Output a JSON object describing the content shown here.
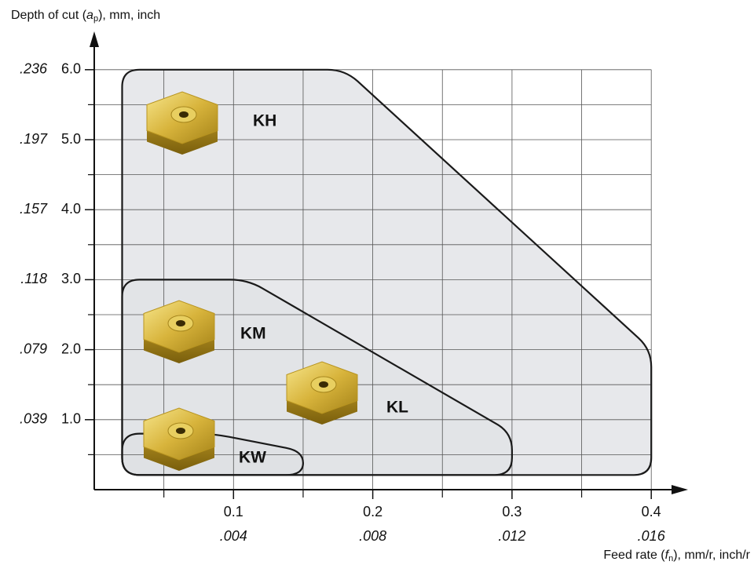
{
  "chart_data": {
    "type": "region",
    "ylabel": {
      "prefix": "Depth of cut (",
      "symbol": "a",
      "subscript": "p",
      "suffix": "), mm, inch"
    },
    "xlabel": {
      "prefix": "Feed rate (",
      "symbol": "f",
      "subscript": "n",
      "suffix": "), mm/r, inch/r"
    },
    "xlim": [
      0,
      0.42
    ],
    "ylim": [
      0,
      6.5
    ],
    "xticks": [
      0.1,
      0.2,
      0.3,
      0.4
    ],
    "x_inch_labels": [
      ".004",
      ".008",
      ".012",
      ".016"
    ],
    "x_minor_ticks": [
      0.05,
      0.15,
      0.25,
      0.35
    ],
    "yticks": [
      {
        "value": 1,
        "label": "1.0"
      },
      {
        "value": 2,
        "label": "2.0"
      },
      {
        "value": 3,
        "label": "3.0"
      },
      {
        "value": 4,
        "label": "4.0"
      },
      {
        "value": 5,
        "label": "5.0"
      },
      {
        "value": 6,
        "label": "6.0"
      }
    ],
    "y_inch_labels": [
      ".039",
      ".079",
      ".118",
      ".157",
      ".197",
      ".236"
    ],
    "y_minor_ticks": [
      0.5,
      1.5,
      2.5,
      3.5,
      4.5,
      5.5
    ],
    "grid": true,
    "regions": [
      {
        "x": [
          0.02,
          0.02,
          0.18,
          0.4,
          0.4
        ],
        "y": [
          0.21,
          6.0,
          6.0,
          2.0,
          0.21
        ]
      },
      {
        "x": [
          0.02,
          0.02,
          0.11,
          0.3,
          0.3
        ],
        "y": [
          0.21,
          3.0,
          3.0,
          0.81,
          0.21
        ]
      },
      {
        "x": [
          0.02,
          0.02,
          0.085,
          0.15,
          0.15
        ],
        "y": [
          0.21,
          0.8,
          0.8,
          0.55,
          0.21
        ]
      }
    ],
    "inserts": [
      "KH",
      "KM",
      "KL",
      "KW"
    ]
  }
}
